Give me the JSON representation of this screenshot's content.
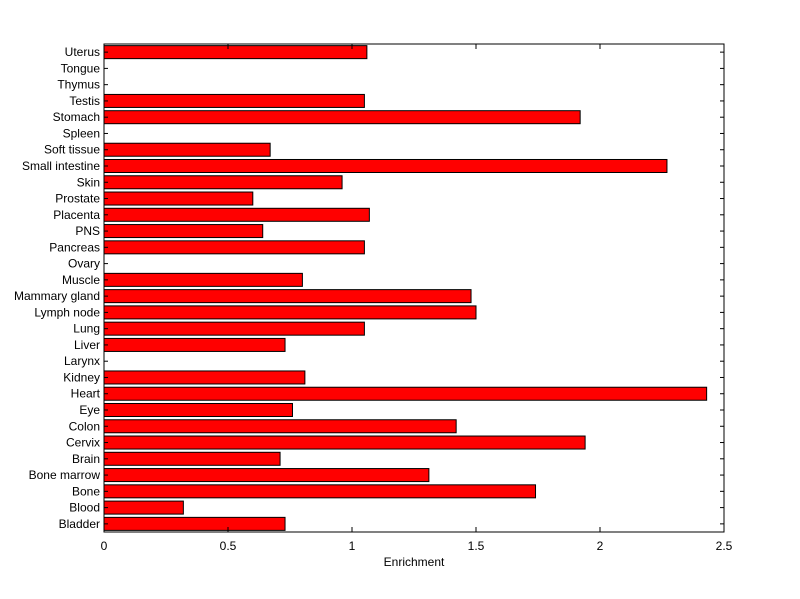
{
  "chart_data": {
    "type": "bar",
    "orientation": "horizontal",
    "categories": [
      "Bladder",
      "Blood",
      "Bone",
      "Bone marrow",
      "Brain",
      "Cervix",
      "Colon",
      "Eye",
      "Heart",
      "Kidney",
      "Larynx",
      "Liver",
      "Lung",
      "Lymph node",
      "Mammary gland",
      "Muscle",
      "Ovary",
      "Pancreas",
      "PNS",
      "Placenta",
      "Prostate",
      "Skin",
      "Small intestine",
      "Soft tissue",
      "Spleen",
      "Stomach",
      "Testis",
      "Thymus",
      "Tongue",
      "Uterus"
    ],
    "values": [
      0.73,
      0.32,
      1.74,
      1.31,
      0.71,
      1.94,
      1.42,
      0.76,
      2.43,
      0.81,
      0,
      0.73,
      1.05,
      1.5,
      1.48,
      0.8,
      0,
      1.05,
      0.64,
      1.07,
      0.6,
      0.96,
      2.27,
      0.67,
      0,
      1.92,
      1.05,
      0,
      0,
      1.06
    ],
    "xlabel": "Enrichment",
    "ylabel": "",
    "xlim": [
      0,
      2.5
    ],
    "xticks": [
      "0",
      "0.5",
      "1",
      "1.5",
      "2",
      "2.5"
    ],
    "grid": false,
    "legend": "none",
    "bar_color": "#ff0000",
    "bar_edge_color": "#000000"
  }
}
